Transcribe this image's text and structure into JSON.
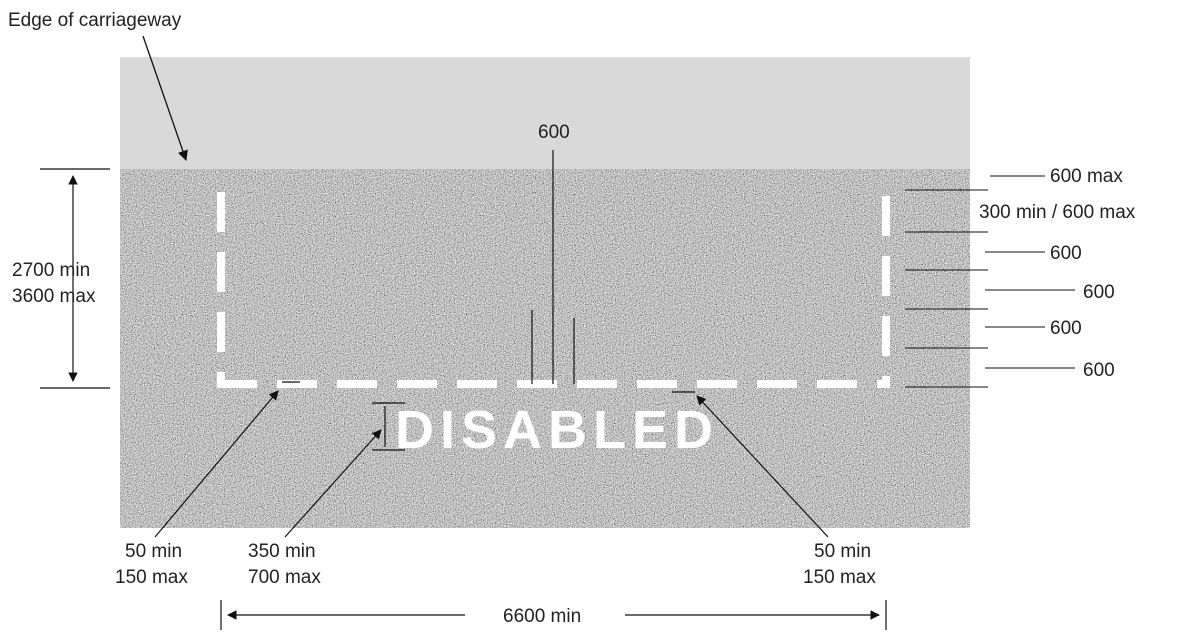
{
  "labels": {
    "edge_of_carriageway": "Edge of carriageway",
    "bay_length": "600",
    "marking_word": "DISABLED",
    "width_min": "2700 min",
    "width_max": "3600 max",
    "right_1": "600 max",
    "right_2": "300 min / 600 max",
    "right_3": "600",
    "right_4": "600",
    "right_5": "600",
    "right_6": "600",
    "gap_left_min": "50 min",
    "gap_left_max": "150 max",
    "text_height_min": "350 min",
    "text_height_max": "700 max",
    "gap_right_min": "50 min",
    "gap_right_max": "150 max",
    "overall_length": "6600 min"
  },
  "colors": {
    "footway": "#d9d9d9",
    "carriageway": "#8a8a8a",
    "marking": "#ffffff",
    "line": "#111111"
  }
}
